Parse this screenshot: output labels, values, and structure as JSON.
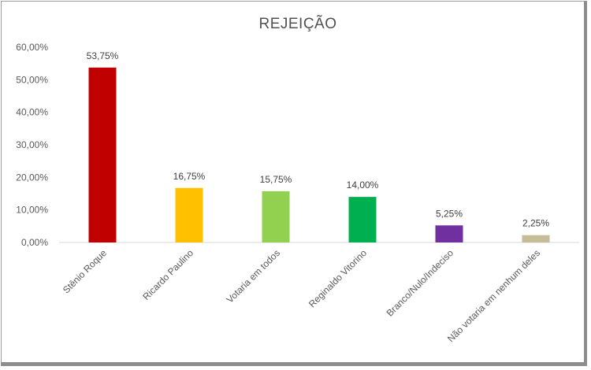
{
  "chart_data": {
    "type": "bar",
    "title": "REJEIÇÃO",
    "xlabel": "",
    "ylabel": "",
    "ylim": [
      0,
      60
    ],
    "yticks": [
      "0,00%",
      "10,00%",
      "20,00%",
      "30,00%",
      "40,00%",
      "50,00%",
      "60,00%"
    ],
    "grid": false,
    "legend": "none",
    "categories": [
      "Stênio Roque",
      "Ricardo Paulino",
      "Votaria em todos",
      "Reginaldo Vitorino",
      "Branco/Nulo/Indeciso",
      "Não votaria em nenhum deles"
    ],
    "values": [
      53.75,
      16.75,
      15.75,
      14.0,
      5.25,
      2.25
    ],
    "value_labels": [
      "53,75%",
      "16,75%",
      "15,75%",
      "14,00%",
      "5,25%",
      "2,25%"
    ],
    "colors": [
      "#c00000",
      "#ffc000",
      "#92d050",
      "#00b050",
      "#7030a0",
      "#c4bd97"
    ]
  }
}
